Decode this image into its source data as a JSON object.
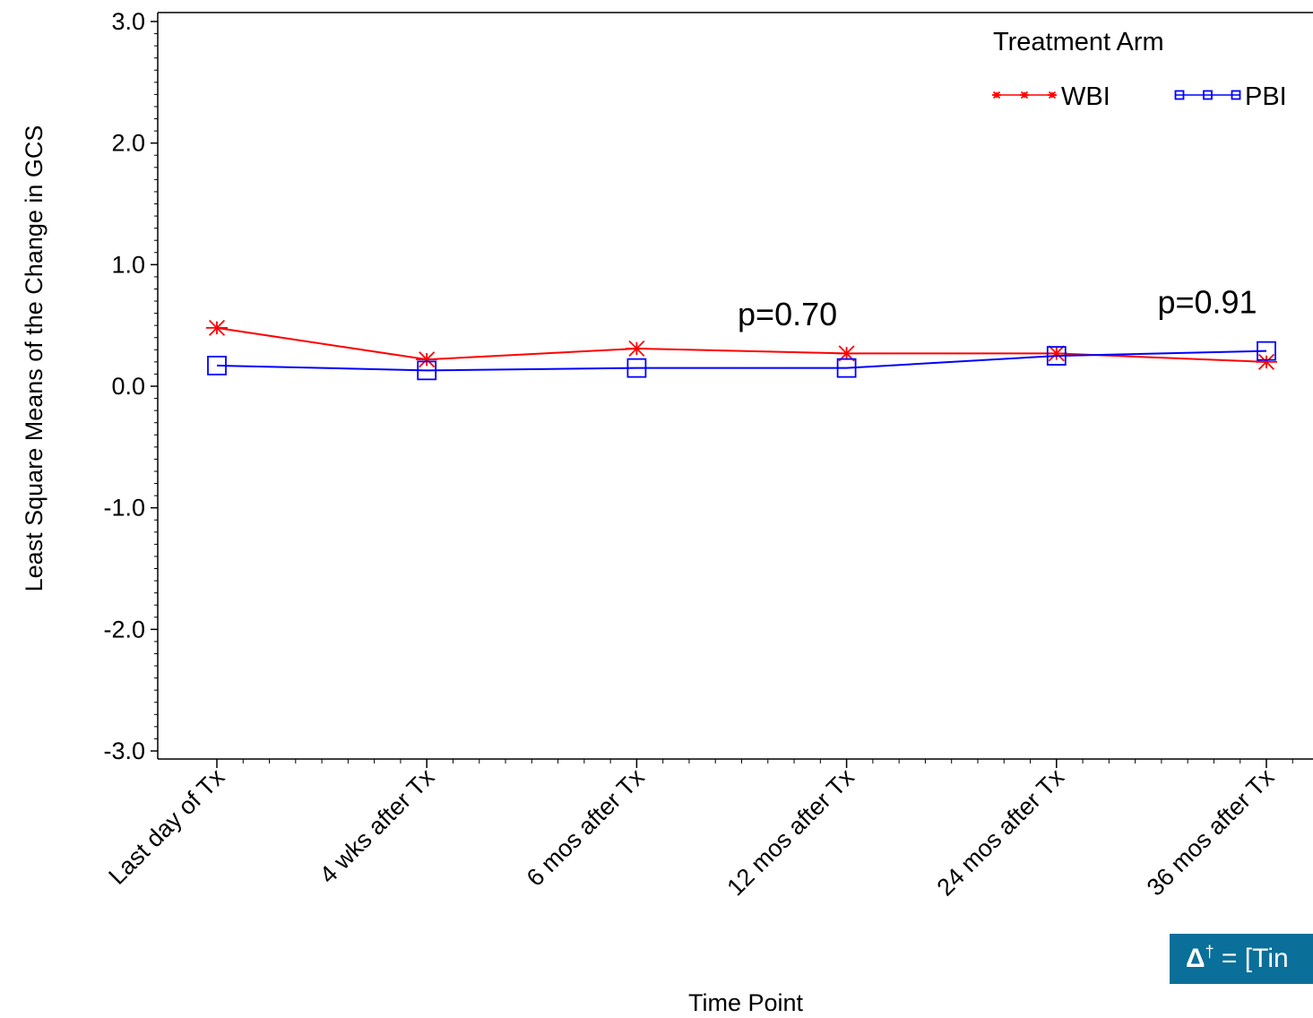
{
  "chart_data": {
    "type": "line",
    "xlabel": "Time Point",
    "ylabel": "Least Square Means of the Change in GCS",
    "categories": [
      "Last day of Tx",
      "4 wks after Tx",
      "6 mos after Tx",
      "12 mos after Tx",
      "24 mos after Tx",
      "36 mos after Tx"
    ],
    "ylim": [
      -3.0,
      3.0
    ],
    "yticks": [
      "3.0",
      "2.0",
      "1.0",
      "0.0",
      "-1.0",
      "-2.0",
      "-3.0"
    ],
    "series": [
      {
        "name": "WBI",
        "color": "#ff0000",
        "marker": "asterisk",
        "values": [
          0.48,
          0.22,
          0.31,
          0.27,
          0.27,
          0.2
        ]
      },
      {
        "name": "PBI",
        "color": "#0000ff",
        "marker": "square",
        "values": [
          0.17,
          0.13,
          0.15,
          0.15,
          0.25,
          0.29
        ]
      }
    ],
    "legend": {
      "title": "Treatment Arm",
      "position": "top-right"
    },
    "annotations": [
      {
        "text": "p=0.70",
        "category": "12 mos after Tx",
        "y": 0.5
      },
      {
        "text": "p=0.91",
        "category": "36 mos after Tx",
        "y": 0.6
      }
    ],
    "grid": false
  },
  "footnote": {
    "symbol": "Δ",
    "dagger": "†",
    "text": " = [Tin"
  }
}
